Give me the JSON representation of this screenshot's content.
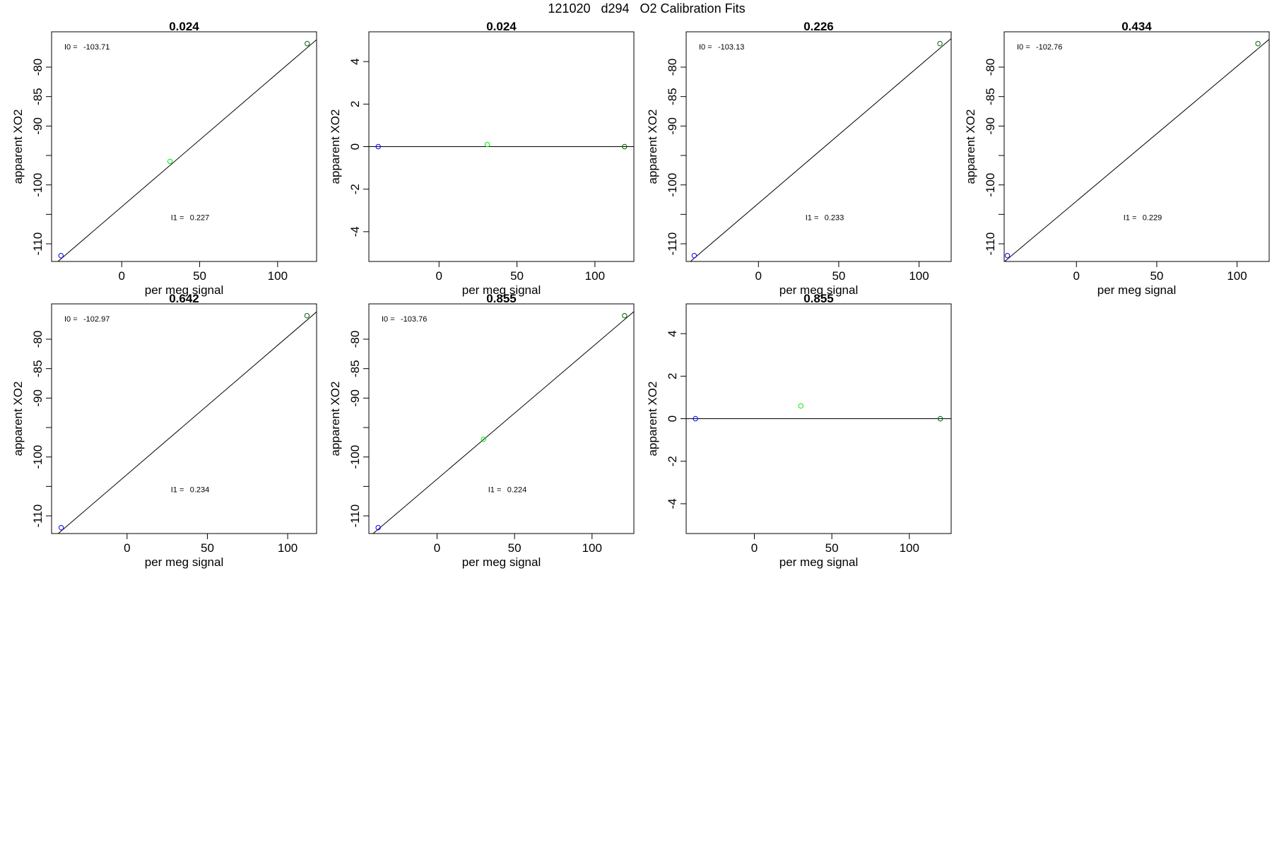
{
  "figure_title": "121020   d294   O2 Calibration Fits",
  "colors": {
    "low_point": "#0000ff",
    "mid_point": "#00ee00",
    "high_point": "#006400",
    "fit_line": "#000000",
    "frame": "#000000"
  },
  "chart_data": [
    {
      "type": "scatter",
      "title": "0.024",
      "xlabel": "per meg signal",
      "ylabel": "apparent XO2",
      "xlim": [
        -45,
        125
      ],
      "ylim": [
        -113,
        -74
      ],
      "xticks": [
        0,
        50,
        100
      ],
      "xtick_labels": [
        "0",
        "50",
        "100"
      ],
      "yticks": [
        -110,
        -105,
        -100,
        -95,
        -90,
        -85,
        -80
      ],
      "ytick_labels": [
        "-110",
        "",
        "-100",
        "",
        "-90",
        "-85",
        "-80"
      ],
      "points": [
        {
          "x": -39,
          "y": -112,
          "color": "blue"
        },
        {
          "x": 31,
          "y": -96.0,
          "color": "green"
        },
        {
          "x": 119,
          "y": -76,
          "color": "darkgreen"
        }
      ],
      "fit": {
        "intercept": -103.71,
        "slope": 0.227
      },
      "annotations": [
        {
          "label": "I0 =",
          "value": "-103.71"
        },
        {
          "label": "I1 =",
          "value": "0.227"
        }
      ]
    },
    {
      "type": "scatter",
      "title": "0.024",
      "xlabel": "per meg signal",
      "ylabel": "apparent XO2",
      "xlim": [
        -45,
        125
      ],
      "ylim": [
        -5.4,
        5.4
      ],
      "xticks": [
        0,
        50,
        100
      ],
      "xtick_labels": [
        "0",
        "50",
        "100"
      ],
      "yticks": [
        -4,
        -2,
        0,
        2,
        4
      ],
      "ytick_labels": [
        "-4",
        "-2",
        "0",
        "2",
        "4"
      ],
      "points": [
        {
          "x": -39,
          "y": 0,
          "color": "blue"
        },
        {
          "x": 31,
          "y": 0.1,
          "color": "green"
        },
        {
          "x": 119,
          "y": 0,
          "color": "darkgreen"
        }
      ],
      "fit": {
        "intercept": 0,
        "slope": 0
      },
      "annotations": []
    },
    {
      "type": "scatter",
      "title": "0.226",
      "xlabel": "per meg signal",
      "ylabel": "apparent XO2",
      "xlim": [
        -45,
        120
      ],
      "ylim": [
        -113,
        -74
      ],
      "xticks": [
        0,
        50,
        100
      ],
      "xtick_labels": [
        "0",
        "50",
        "100"
      ],
      "yticks": [
        -110,
        -105,
        -100,
        -95,
        -90,
        -85,
        -80
      ],
      "ytick_labels": [
        "-110",
        "",
        "-100",
        "",
        "-90",
        "-85",
        "-80"
      ],
      "points": [
        {
          "x": -40,
          "y": -112,
          "color": "blue"
        },
        {
          "x": 113,
          "y": -76,
          "color": "darkgreen"
        }
      ],
      "fit": {
        "intercept": -103.13,
        "slope": 0.233
      },
      "annotations": [
        {
          "label": "I0 =",
          "value": "-103.13"
        },
        {
          "label": "I1 =",
          "value": "0.233"
        }
      ]
    },
    {
      "type": "scatter",
      "title": "0.434",
      "xlabel": "per meg signal",
      "ylabel": "apparent XO2",
      "xlim": [
        -45,
        120
      ],
      "ylim": [
        -113,
        -74
      ],
      "xticks": [
        0,
        50,
        100
      ],
      "xtick_labels": [
        "0",
        "50",
        "100"
      ],
      "yticks": [
        -110,
        -105,
        -100,
        -95,
        -90,
        -85,
        -80
      ],
      "ytick_labels": [
        "-110",
        "",
        "-100",
        "",
        "-90",
        "-85",
        "-80"
      ],
      "points": [
        {
          "x": -43,
          "y": -112,
          "color": "blue"
        },
        {
          "x": 113,
          "y": -76,
          "color": "darkgreen"
        }
      ],
      "fit": {
        "intercept": -102.76,
        "slope": 0.229
      },
      "annotations": [
        {
          "label": "I0 =",
          "value": "-102.76"
        },
        {
          "label": "I1 =",
          "value": "0.229"
        }
      ]
    },
    {
      "type": "scatter",
      "title": "0.642",
      "xlabel": "per meg signal",
      "ylabel": "apparent XO2",
      "xlim": [
        -47,
        118
      ],
      "ylim": [
        -113,
        -74
      ],
      "xticks": [
        0,
        50,
        100
      ],
      "xtick_labels": [
        "0",
        "50",
        "100"
      ],
      "yticks": [
        -110,
        -105,
        -100,
        -95,
        -90,
        -85,
        -80
      ],
      "ytick_labels": [
        "-110",
        "",
        "-100",
        "",
        "-90",
        "-85",
        "-80"
      ],
      "points": [
        {
          "x": -41,
          "y": -112,
          "color": "blue"
        },
        {
          "x": 112,
          "y": -76,
          "color": "darkgreen"
        }
      ],
      "fit": {
        "intercept": -102.97,
        "slope": 0.234
      },
      "annotations": [
        {
          "label": "I0 =",
          "value": "-102.97"
        },
        {
          "label": "I1 =",
          "value": "0.234"
        }
      ]
    },
    {
      "type": "scatter",
      "title": "0.855",
      "xlabel": "per meg signal",
      "ylabel": "apparent XO2",
      "xlim": [
        -44,
        127
      ],
      "ylim": [
        -113,
        -74
      ],
      "xticks": [
        0,
        50,
        100
      ],
      "xtick_labels": [
        "0",
        "50",
        "100"
      ],
      "yticks": [
        -110,
        -105,
        -100,
        -95,
        -90,
        -85,
        -80
      ],
      "ytick_labels": [
        "-110",
        "",
        "-100",
        "",
        "-90",
        "-85",
        "-80"
      ],
      "points": [
        {
          "x": -38,
          "y": -112,
          "color": "blue"
        },
        {
          "x": 30,
          "y": -97.0,
          "color": "green"
        },
        {
          "x": 121,
          "y": -76,
          "color": "darkgreen"
        }
      ],
      "fit": {
        "intercept": -103.76,
        "slope": 0.224
      },
      "annotations": [
        {
          "label": "I0 =",
          "value": "-103.76"
        },
        {
          "label": "I1 =",
          "value": "0.224"
        }
      ]
    },
    {
      "type": "scatter",
      "title": "0.855",
      "xlabel": "per meg signal",
      "ylabel": "apparent XO2",
      "xlim": [
        -44,
        127
      ],
      "ylim": [
        -5.4,
        5.4
      ],
      "xticks": [
        0,
        50,
        100
      ],
      "xtick_labels": [
        "0",
        "50",
        "100"
      ],
      "yticks": [
        -4,
        -2,
        0,
        2,
        4
      ],
      "ytick_labels": [
        "-4",
        "-2",
        "0",
        "2",
        "4"
      ],
      "points": [
        {
          "x": -38,
          "y": 0,
          "color": "blue"
        },
        {
          "x": 30,
          "y": 0.6,
          "color": "green"
        },
        {
          "x": 120,
          "y": 0,
          "color": "darkgreen"
        }
      ],
      "fit": {
        "intercept": 0,
        "slope": 0
      },
      "annotations": []
    }
  ]
}
